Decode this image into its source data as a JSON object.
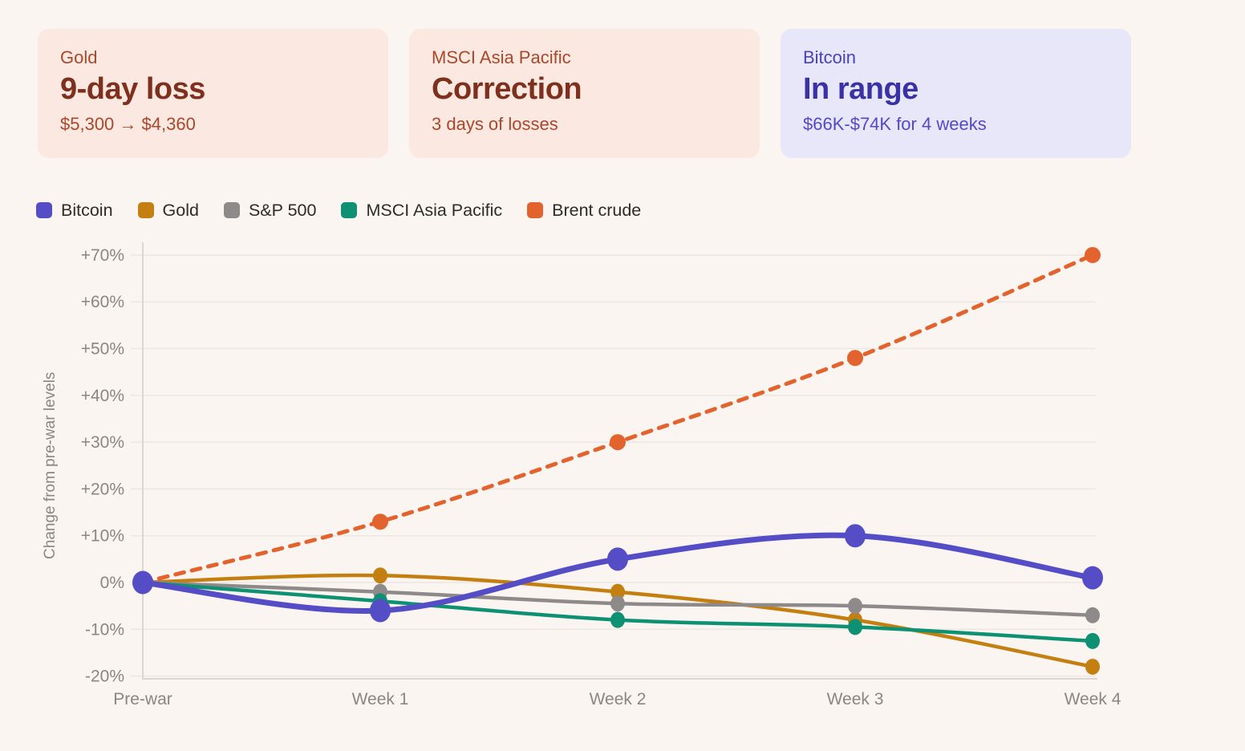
{
  "cards": [
    {
      "label": "Gold",
      "title": "9-day loss",
      "subtitle": "$5,300 → $4,360"
    },
    {
      "label": "MSCI Asia Pacific",
      "title": "Correction",
      "subtitle": "3 days of losses"
    },
    {
      "label": "Bitcoin",
      "title": "In range",
      "subtitle": "$66K-$74K for 4 weeks"
    }
  ],
  "chart_data": {
    "type": "line",
    "categories": [
      "Pre-war",
      "Week 1",
      "Week 2",
      "Week 3",
      "Week 4"
    ],
    "series": [
      {
        "name": "Bitcoin",
        "color": "#554dc5",
        "style": "solid",
        "values": [
          0,
          -6,
          5,
          10,
          1
        ]
      },
      {
        "name": "Gold",
        "color": "#c47f11",
        "style": "solid",
        "values": [
          0,
          1.5,
          -2,
          -8,
          -18
        ]
      },
      {
        "name": "S&P 500",
        "color": "#8e8a8a",
        "style": "solid",
        "values": [
          0,
          -2,
          -4.5,
          -5,
          -7
        ]
      },
      {
        "name": "MSCI Asia Pacific",
        "color": "#0e9073",
        "style": "solid",
        "values": [
          0,
          -4,
          -8,
          -9.5,
          -12.5
        ]
      },
      {
        "name": "Brent crude",
        "color": "#e2632d",
        "style": "dashed",
        "values": [
          0,
          13,
          30,
          48,
          70
        ]
      }
    ],
    "title": "",
    "xlabel": "",
    "ylabel": "Change from pre-war levels",
    "ylim": [
      -20,
      70
    ],
    "ytick_step": 10,
    "grid": true,
    "legend_position": "top"
  },
  "colors": {
    "page_background": "#faf5f1",
    "card_warm_background": "#fbe8e0",
    "card_cool_background": "#e8e7fa",
    "gridline": "#ece7e3",
    "axis_line": "#dcd6d2",
    "axis_text": "#8b8682",
    "legend_text": "#2e2b28"
  }
}
